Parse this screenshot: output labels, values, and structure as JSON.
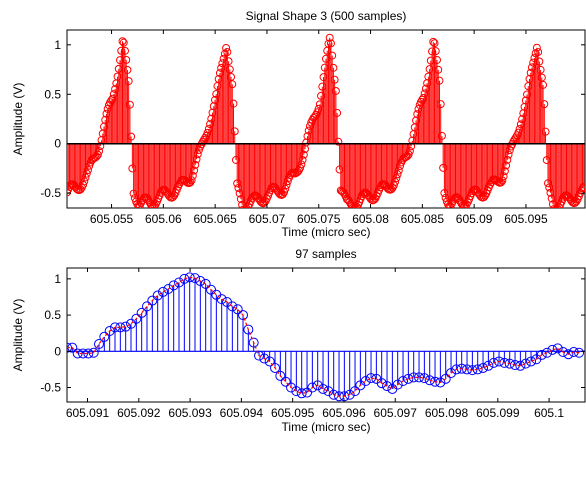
{
  "chart_data": [
    {
      "type": "stem",
      "title": "Signal Shape 3 (500 samples)",
      "xlabel": "Time (micro sec)",
      "ylabel": "Amplitude (V)",
      "xlim": [
        605.0507,
        605.1007
      ],
      "ylim": [
        -0.65,
        1.15
      ],
      "x_ticks": [
        605.055,
        605.06,
        605.065,
        605.07,
        605.075,
        605.08,
        605.085,
        605.09,
        605.095
      ],
      "x_tick_labels": [
        "605.055",
        "605.06",
        "605.065",
        "605.07",
        "605.075",
        "605.08",
        "605.085",
        "605.09",
        "605.095"
      ],
      "y_ticks": [
        -0.5,
        0,
        0.5,
        1
      ],
      "y_tick_labels": [
        "-0.5",
        "0",
        "0.5",
        "1"
      ],
      "grid": false,
      "color": "#ff0000",
      "marker": "circle-open",
      "series": [
        {
          "period_us": 0.01,
          "first_peak_x": 605.0561,
          "peak_amplitude": 1.05,
          "trough_amplitude": -0.62,
          "n_samples": 500
        }
      ]
    },
    {
      "type": "stem",
      "title": "97 samples",
      "xlabel": "Time (micro sec)",
      "ylabel": "Amplitude (V)",
      "xlim": [
        605.0906,
        605.1007
      ],
      "ylim": [
        -0.7,
        1.15
      ],
      "x_ticks": [
        605.091,
        605.092,
        605.093,
        605.094,
        605.095,
        605.096,
        605.097,
        605.098,
        605.099,
        605.1
      ],
      "x_tick_labels": [
        "605.091",
        "605.092",
        "605.093",
        "605.094",
        "605.095",
        "605.096",
        "605.097",
        "605.098",
        "605.099",
        "605.1"
      ],
      "y_ticks": [
        -0.5,
        0,
        0.5,
        1
      ],
      "y_tick_labels": [
        "-0.5",
        "0",
        "0.5",
        "1"
      ],
      "grid": false,
      "stem_color": "#0000ff",
      "marker_color": "#0000ff",
      "curve_color": "#ff0000",
      "series": [
        {
          "x_start": 605.0906,
          "x_step": 0.000104,
          "values": [
            0.05,
            0.05,
            -0.03,
            -0.03,
            -0.03,
            -0.02,
            0.1,
            0.2,
            0.28,
            0.33,
            0.33,
            0.34,
            0.38,
            0.45,
            0.53,
            0.62,
            0.7,
            0.77,
            0.82,
            0.86,
            0.91,
            0.95,
            1.0,
            1.02,
            1.01,
            0.97,
            0.93,
            0.85,
            0.78,
            0.72,
            0.68,
            0.62,
            0.58,
            0.5,
            0.3,
            0.12,
            -0.06,
            -0.1,
            -0.14,
            -0.23,
            -0.34,
            -0.42,
            -0.5,
            -0.55,
            -0.58,
            -0.57,
            -0.5,
            -0.47,
            -0.52,
            -0.55,
            -0.6,
            -0.62,
            -0.62,
            -0.6,
            -0.55,
            -0.47,
            -0.41,
            -0.37,
            -0.38,
            -0.44,
            -0.48,
            -0.52,
            -0.46,
            -0.41,
            -0.38,
            -0.36,
            -0.36,
            -0.37,
            -0.4,
            -0.42,
            -0.43,
            -0.38,
            -0.3,
            -0.25,
            -0.24,
            -0.25,
            -0.26,
            -0.25,
            -0.23,
            -0.2,
            -0.16,
            -0.14,
            -0.16,
            -0.17,
            -0.19,
            -0.2,
            -0.17,
            -0.14,
            -0.11,
            -0.05,
            -0.02,
            0.02,
            0.04,
            -0.01,
            -0.04,
            -0.01,
            -0.02
          ]
        }
      ]
    }
  ]
}
